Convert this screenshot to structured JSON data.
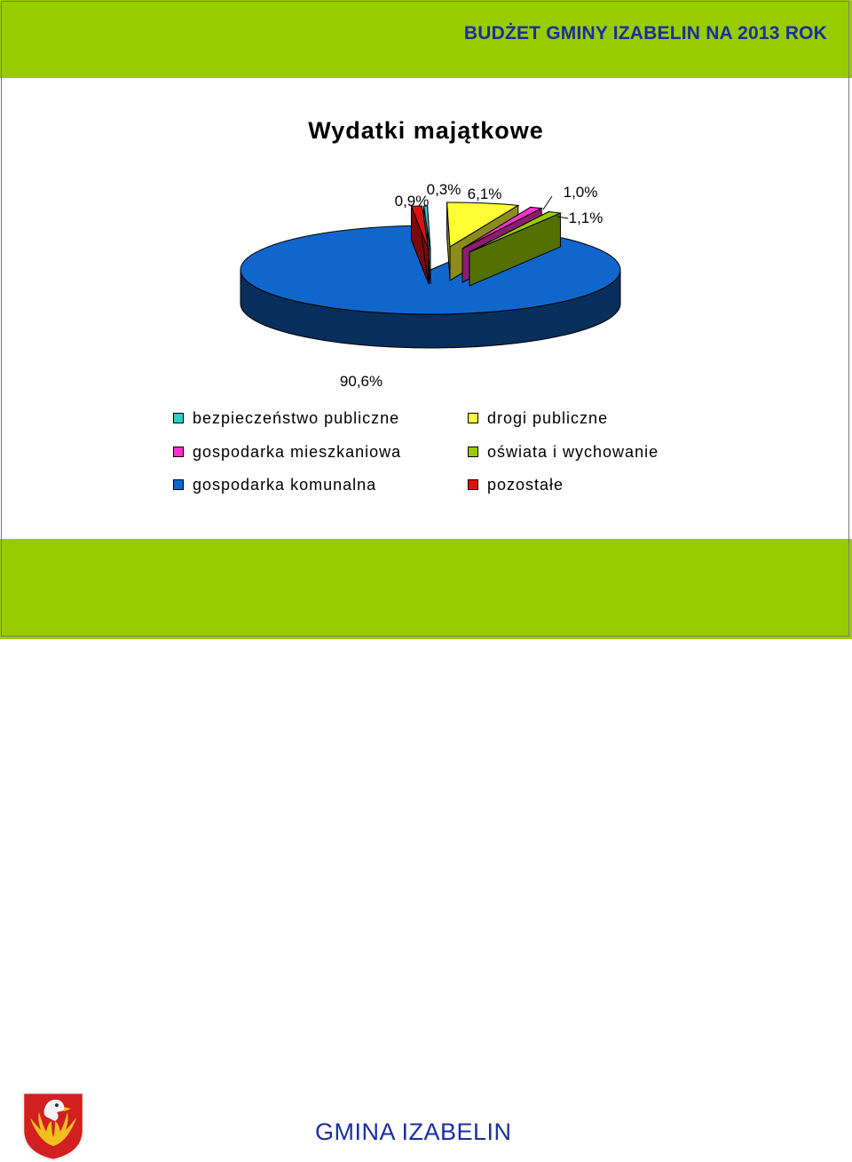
{
  "header": {
    "title": "BUDŻET GMINY IZABELIN NA 2013 ROK"
  },
  "footer": {
    "title": "GMINA IZABELIN"
  },
  "colors": {
    "band_green": "#99cc00",
    "brand_text": "#1a2ea0"
  },
  "icons": {
    "coat_of_arms": "coat-of-arms-icon"
  },
  "chart_data": {
    "type": "pie",
    "title": "Wydatki majątkowe",
    "legend_position": "bottom",
    "slices": [
      {
        "label": "bezpieczeństwo publiczne",
        "value": 0.3,
        "value_label": "0,3%",
        "color": "#33cccc"
      },
      {
        "label": "drogi publiczne",
        "value": 6.1,
        "value_label": "6,1%",
        "color": "#ffff33"
      },
      {
        "label": "gospodarka mieszkaniowa",
        "value": 1.0,
        "value_label": "1,0%",
        "color": "#ff33cc"
      },
      {
        "label": "oświata i wychowanie",
        "value": 1.1,
        "value_label": "1,1%",
        "color": "#99cc00"
      },
      {
        "label": "gospodarka komunalna",
        "value": 90.6,
        "value_label": "90,6%",
        "color": "#1166cc"
      },
      {
        "label": "pozostałe",
        "value": 0.9,
        "value_label": "0,9%",
        "color": "#dd1111"
      }
    ]
  }
}
